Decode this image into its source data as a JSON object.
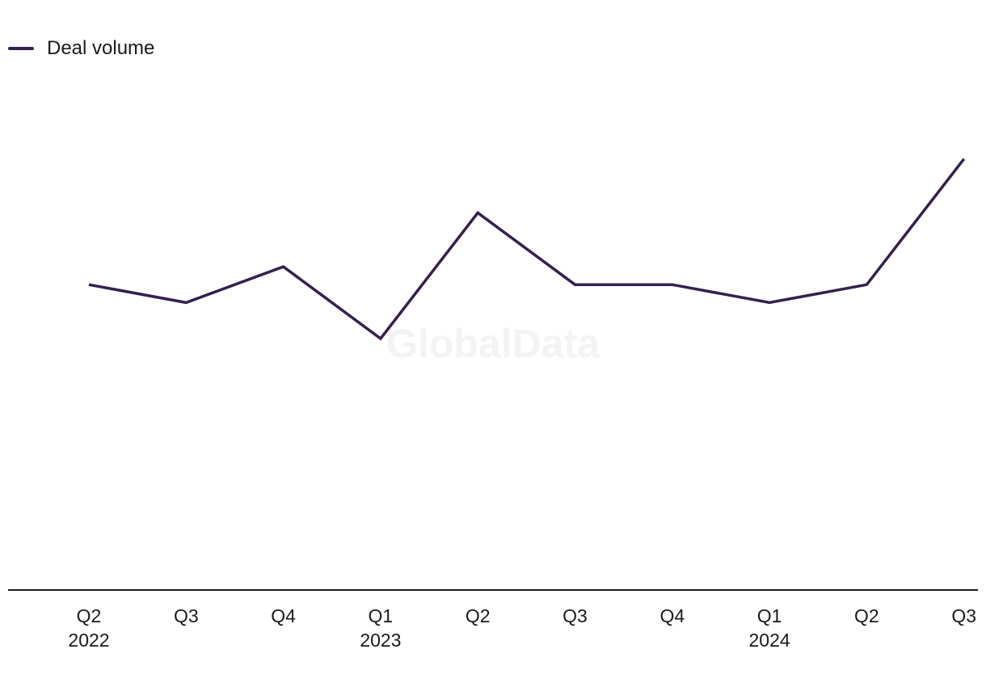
{
  "legend": {
    "label": "Deal volume"
  },
  "watermark": "GlobalData",
  "colors": {
    "line": "#35204f",
    "axis": "#1a1a1a",
    "text": "#1a1a1a"
  },
  "chart_data": {
    "type": "line",
    "title": "",
    "xlabel": "",
    "ylabel": "",
    "grid": false,
    "legend_position": "top-left",
    "categories": [
      "Q2 2022",
      "Q3 2022",
      "Q4 2022",
      "Q1 2023",
      "Q2 2023",
      "Q3 2023",
      "Q4 2023",
      "Q1 2024",
      "Q2 2024",
      "Q3 2024"
    ],
    "tick_labels": [
      {
        "quarter": "Q2",
        "year": "2022"
      },
      {
        "quarter": "Q3",
        "year": ""
      },
      {
        "quarter": "Q4",
        "year": ""
      },
      {
        "quarter": "Q1",
        "year": "2023"
      },
      {
        "quarter": "Q2",
        "year": ""
      },
      {
        "quarter": "Q3",
        "year": ""
      },
      {
        "quarter": "Q4",
        "year": ""
      },
      {
        "quarter": "Q1",
        "year": "2024"
      },
      {
        "quarter": "Q2",
        "year": ""
      },
      {
        "quarter": "Q3",
        "year": ""
      }
    ],
    "series": [
      {
        "name": "Deal volume",
        "values": [
          7,
          6,
          8,
          4,
          11,
          7,
          7,
          6,
          7,
          14
        ]
      }
    ],
    "ylim": [
      -10,
      17
    ]
  }
}
